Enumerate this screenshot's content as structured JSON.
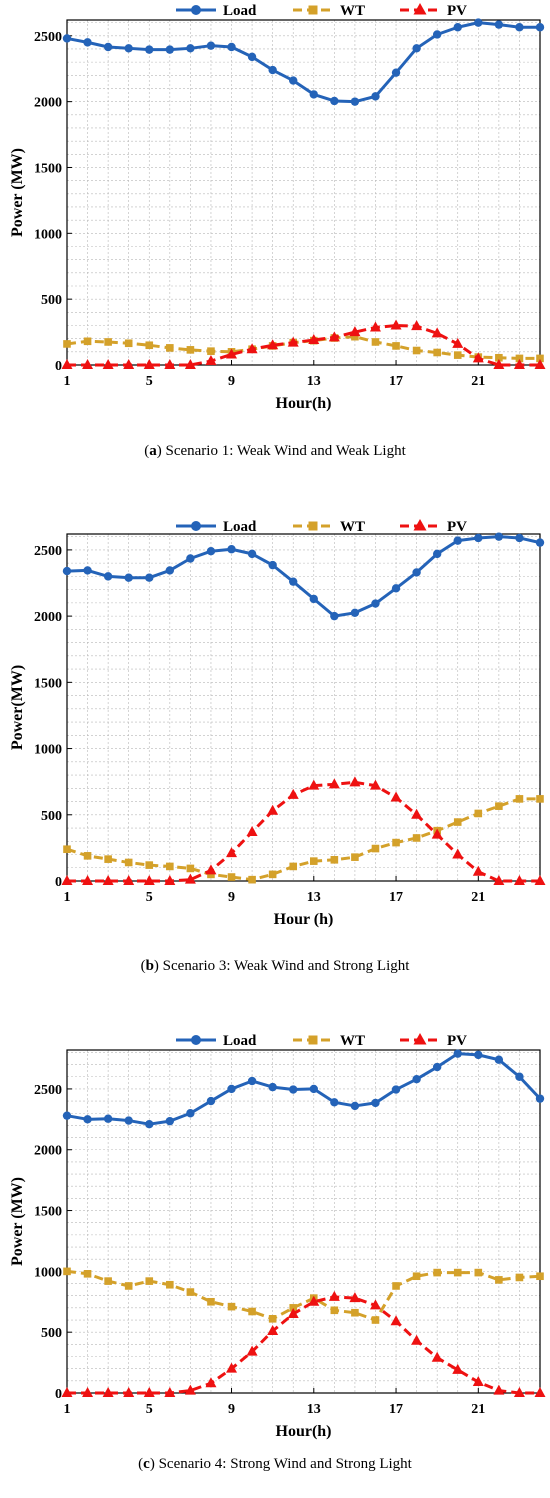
{
  "colors": {
    "load": "#2463b8",
    "wt": "#d4a12a",
    "pv": "#ee1111"
  },
  "chart_data": [
    {
      "type": "line",
      "caption_letter": "a",
      "caption_text": "Scenario 1: Weak Wind and Weak Light",
      "xlabel": "Hour(h)",
      "ylabel": "Power (MW)",
      "xlim": [
        1,
        24
      ],
      "ylim": [
        0,
        2620
      ],
      "xticks": [
        "1",
        "5",
        "9",
        "13",
        "17",
        "21"
      ],
      "yticks": [
        "0",
        "500",
        "1000",
        "1500",
        "2000",
        "2500"
      ],
      "grid": true,
      "legend": "top",
      "x": [
        1,
        2,
        3,
        4,
        5,
        6,
        7,
        8,
        9,
        10,
        11,
        12,
        13,
        14,
        15,
        16,
        17,
        18,
        19,
        20,
        21,
        22,
        23,
        24
      ],
      "series": [
        {
          "name": "Load",
          "values": [
            2480,
            2450,
            2415,
            2405,
            2395,
            2395,
            2405,
            2425,
            2415,
            2340,
            2240,
            2160,
            2055,
            2005,
            2000,
            2040,
            2220,
            2405,
            2510,
            2565,
            2600,
            2585,
            2565,
            2565
          ]
        },
        {
          "name": "WT",
          "values": [
            160,
            180,
            175,
            165,
            150,
            130,
            115,
            105,
            100,
            120,
            145,
            170,
            185,
            205,
            215,
            175,
            145,
            110,
            95,
            75,
            60,
            55,
            50,
            50
          ]
        },
        {
          "name": "PV",
          "values": [
            0,
            0,
            0,
            0,
            0,
            0,
            0,
            30,
            80,
            120,
            150,
            170,
            190,
            210,
            250,
            285,
            300,
            295,
            240,
            160,
            50,
            0,
            0,
            0
          ]
        }
      ]
    },
    {
      "type": "line",
      "caption_letter": "b",
      "caption_text": "Scenario 3: Weak Wind and Strong Light",
      "xlabel": "Hour (h)",
      "ylabel": "Power(MW)",
      "xlim": [
        1,
        24
      ],
      "ylim": [
        0,
        2620
      ],
      "xticks": [
        "1",
        "5",
        "9",
        "13",
        "17",
        "21"
      ],
      "yticks": [
        "0",
        "500",
        "1000",
        "1500",
        "2000",
        "2500"
      ],
      "grid": true,
      "legend": "top",
      "x": [
        1,
        2,
        3,
        4,
        5,
        6,
        7,
        8,
        9,
        10,
        11,
        12,
        13,
        14,
        15,
        16,
        17,
        18,
        19,
        20,
        21,
        22,
        23,
        24
      ],
      "series": [
        {
          "name": "Load",
          "values": [
            2340,
            2345,
            2300,
            2290,
            2290,
            2345,
            2435,
            2490,
            2505,
            2470,
            2385,
            2260,
            2130,
            2000,
            2025,
            2095,
            2210,
            2330,
            2470,
            2570,
            2590,
            2600,
            2590,
            2555
          ]
        },
        {
          "name": "WT",
          "values": [
            240,
            190,
            165,
            140,
            120,
            110,
            95,
            50,
            30,
            10,
            50,
            110,
            150,
            160,
            180,
            245,
            290,
            325,
            380,
            445,
            510,
            565,
            620,
            620
          ]
        },
        {
          "name": "PV",
          "values": [
            0,
            0,
            0,
            0,
            0,
            0,
            10,
            80,
            210,
            370,
            530,
            650,
            720,
            730,
            745,
            720,
            630,
            500,
            350,
            200,
            70,
            0,
            0,
            0
          ]
        }
      ]
    },
    {
      "type": "line",
      "caption_letter": "c",
      "caption_text": "Scenario 4: Strong Wind and Strong Light",
      "xlabel": "Hour(h)",
      "ylabel": "Power (MW)",
      "xlim": [
        1,
        24
      ],
      "ylim": [
        0,
        2820
      ],
      "xticks": [
        "1",
        "5",
        "9",
        "13",
        "17",
        "21"
      ],
      "yticks": [
        "0",
        "500",
        "1000",
        "1500",
        "2000",
        "2500"
      ],
      "grid": true,
      "legend": "top",
      "x": [
        1,
        2,
        3,
        4,
        5,
        6,
        7,
        8,
        9,
        10,
        11,
        12,
        13,
        14,
        15,
        16,
        17,
        18,
        19,
        20,
        21,
        22,
        23,
        24
      ],
      "series": [
        {
          "name": "Load",
          "values": [
            2280,
            2250,
            2255,
            2240,
            2210,
            2235,
            2300,
            2400,
            2500,
            2565,
            2515,
            2495,
            2500,
            2390,
            2360,
            2385,
            2495,
            2580,
            2680,
            2790,
            2780,
            2740,
            2600,
            2420
          ]
        },
        {
          "name": "WT",
          "values": [
            1000,
            980,
            920,
            880,
            920,
            890,
            830,
            750,
            710,
            670,
            610,
            700,
            780,
            680,
            660,
            600,
            880,
            960,
            990,
            990,
            990,
            930,
            950,
            960
          ]
        },
        {
          "name": "PV",
          "values": [
            0,
            0,
            0,
            0,
            0,
            0,
            20,
            80,
            200,
            340,
            510,
            650,
            750,
            790,
            780,
            720,
            590,
            430,
            290,
            190,
            90,
            20,
            0,
            0
          ]
        }
      ]
    }
  ]
}
